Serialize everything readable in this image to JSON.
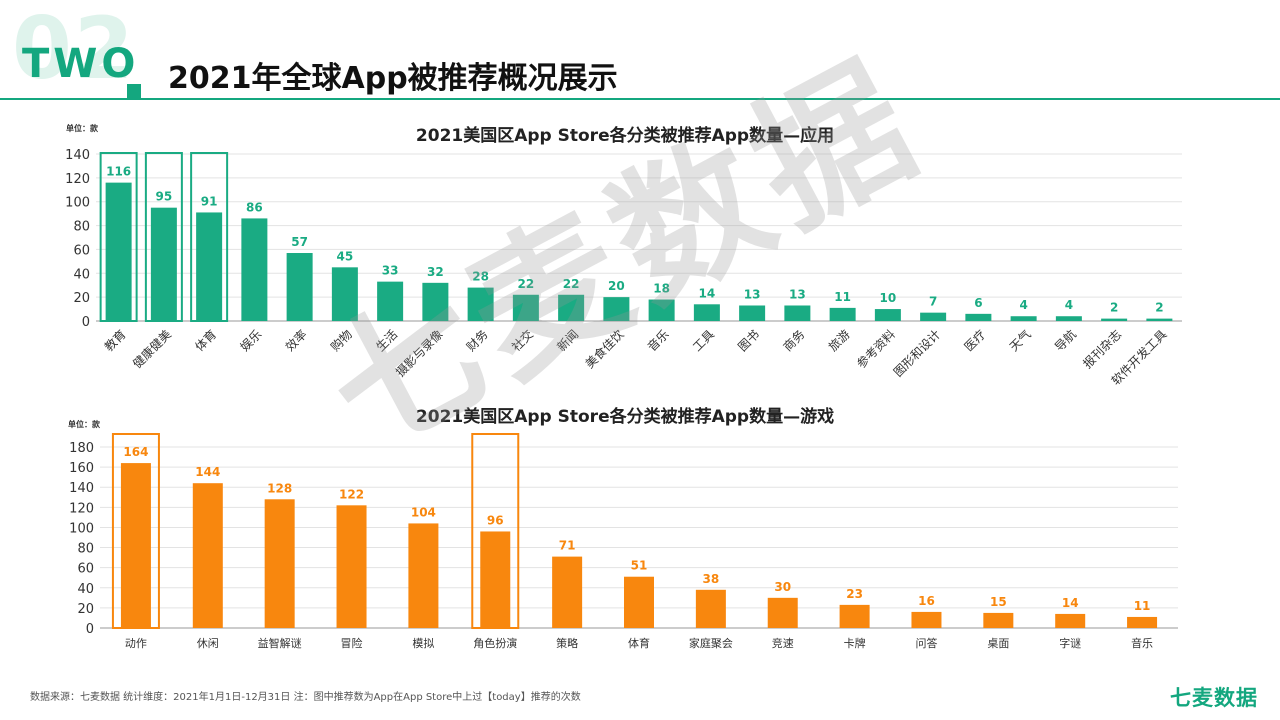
{
  "header": {
    "bignum": "02",
    "section": "TWO",
    "title": "2021年全球App被推荐概况展示"
  },
  "colors": {
    "green": "#1aab83",
    "orange": "#f8870e",
    "grid": "#e3e3e3",
    "axis": "#999999"
  },
  "chart_data": [
    {
      "type": "bar",
      "title": "2021美国区App Store各分类被推荐App数量—应用",
      "unit_label": "单位：款",
      "categories": [
        "教育",
        "健康健美",
        "体育",
        "娱乐",
        "效率",
        "购物",
        "生活",
        "摄影与录像",
        "财务",
        "社交",
        "新闻",
        "美食佳饮",
        "音乐",
        "工具",
        "图书",
        "商务",
        "旅游",
        "参考资料",
        "图形和设计",
        "医疗",
        "天气",
        "导航",
        "报刊杂志",
        "软件开发工具"
      ],
      "values": [
        116,
        95,
        91,
        86,
        57,
        45,
        33,
        32,
        28,
        22,
        22,
        20,
        18,
        14,
        13,
        13,
        11,
        10,
        7,
        6,
        4,
        4,
        2,
        2
      ],
      "ylim": [
        0,
        140
      ],
      "yticks": [
        0,
        20,
        40,
        60,
        80,
        100,
        120,
        140
      ],
      "highlighted": [
        "教育",
        "健康健美",
        "体育"
      ],
      "grid": true,
      "color": "#1aab83"
    },
    {
      "type": "bar",
      "title": "2021美国区App Store各分类被推荐App数量—游戏",
      "unit_label": "单位：款",
      "categories": [
        "动作",
        "休闲",
        "益智解谜",
        "冒险",
        "模拟",
        "角色扮演",
        "策略",
        "体育",
        "家庭聚会",
        "竞速",
        "卡牌",
        "问答",
        "桌面",
        "字谜",
        "音乐"
      ],
      "values": [
        164,
        144,
        128,
        122,
        104,
        96,
        71,
        51,
        38,
        30,
        23,
        16,
        15,
        14,
        11
      ],
      "ylim": [
        0,
        180
      ],
      "yticks": [
        0,
        20,
        40,
        60,
        80,
        100,
        120,
        140,
        160,
        180
      ],
      "highlighted": [
        "动作",
        "角色扮演"
      ],
      "grid": true,
      "color": "#f8870e"
    }
  ],
  "watermark": "七麦数据",
  "footer": {
    "note": "数据来源：七麦数据  统计维度：2021年1月1日-12月31日  注：图中推荐数为App在App Store中上过【today】推荐的次数",
    "brand": "七麦数据"
  }
}
